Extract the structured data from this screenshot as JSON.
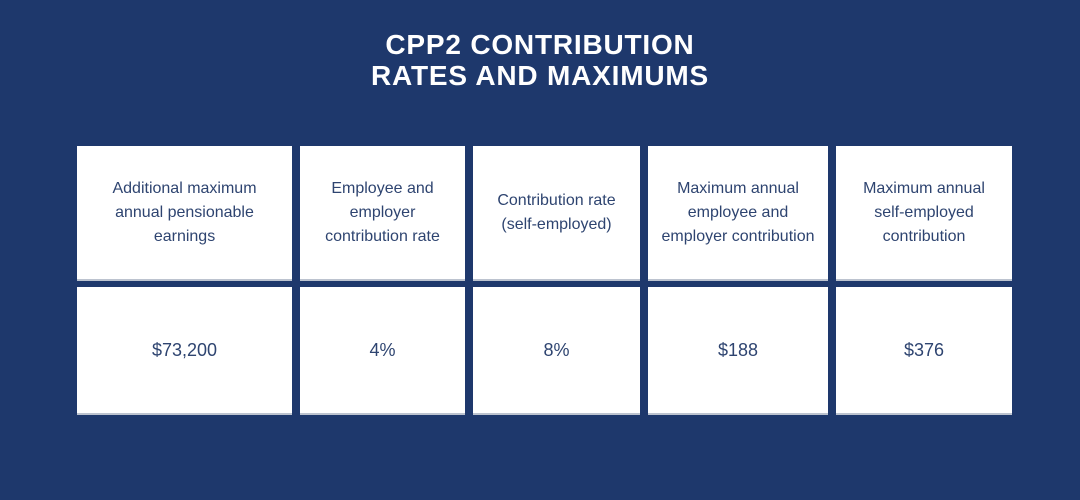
{
  "page": {
    "background_color": "#1e386c"
  },
  "title": {
    "line1": "CPP2 Contribution",
    "line2": "Rates and Maximums",
    "color": "#ffffff"
  },
  "table": {
    "cell_background": "#ffffff",
    "text_color": "#2e4470",
    "columns": [
      {
        "header": "Additional maximum annual pensionable earnings",
        "value": "$73,200"
      },
      {
        "header": "Employee and employer contribution rate",
        "value": "4%"
      },
      {
        "header": "Contribution rate (self-employed)",
        "value": "8%"
      },
      {
        "header": "Maximum annual employee and employer contribution",
        "value": "$188"
      },
      {
        "header": "Maximum annual self-employed contribution",
        "value": "$376"
      }
    ]
  },
  "chart_data": {
    "type": "table",
    "title": "CPP2 CONTRIBUTION RATES AND MAXIMUMS",
    "columns": [
      "Additional maximum annual pensionable earnings",
      "Employee and employer contribution rate",
      "Contribution rate (self-employed)",
      "Maximum annual employee and employer contribution",
      "Maximum annual self-employed contribution"
    ],
    "rows": [
      [
        "$73,200",
        "4%",
        "8%",
        "$188",
        "$376"
      ]
    ]
  }
}
